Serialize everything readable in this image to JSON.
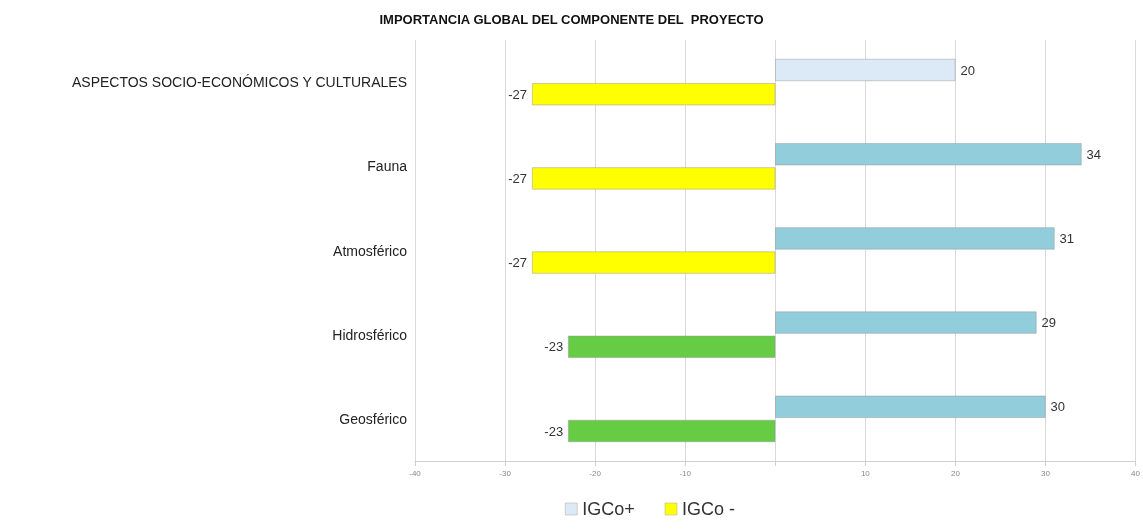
{
  "chart_data": {
    "type": "bar",
    "orientation": "horizontal",
    "title": "IMPORTANCIA GLOBAL DEL COMPONENTE DEL  PROYECTO",
    "categories": [
      "ASPECTOS SOCIO-ECONÓMICOS Y CULTURALES",
      "Fauna",
      "Atmosférico",
      "Hidrosférico",
      "Geosférico"
    ],
    "series": [
      {
        "name": "IGCo+",
        "color": "#dce9f6",
        "colors": [
          "#dce9f6",
          "#92cddc",
          "#92cddc",
          "#92cddc",
          "#92cddc"
        ],
        "values": [
          20,
          34,
          31,
          29,
          30
        ]
      },
      {
        "name": "IGCo -",
        "color": "#ffff00",
        "colors": [
          "#ffff00",
          "#ffff00",
          "#ffff00",
          "#66cc44",
          "#66cc44"
        ],
        "values": [
          -27,
          -27,
          -27,
          -23,
          -23
        ]
      }
    ],
    "xlim": [
      -40,
      40
    ],
    "xticks": [
      -40,
      -30,
      -20,
      -10,
      {
        "value": 0,
        "label": null
      },
      10,
      20,
      30,
      40
    ],
    "grid": "x",
    "legend": "bottom",
    "data_labels": true
  }
}
